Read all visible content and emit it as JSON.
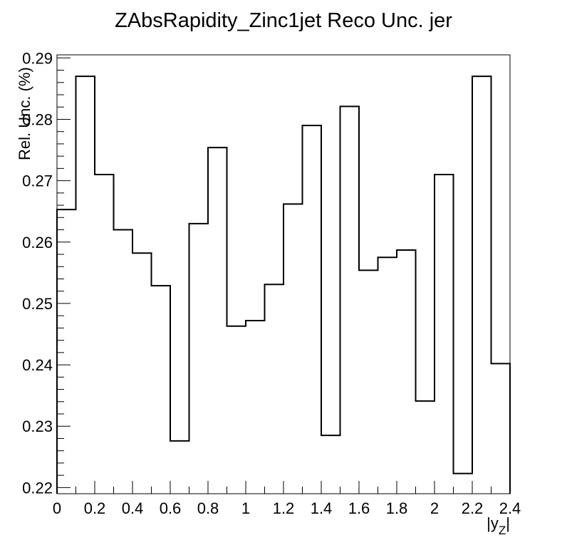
{
  "chart_data": {
    "type": "histogram-step",
    "title": "ZAbsRapidity_Zinc1jet Reco Unc. jer",
    "xlabel": "|y",
    "xlabel_sub": "Z",
    "xlabel_close": "|",
    "ylabel": "Rel. Unc. (%)",
    "xlim": [
      0,
      2.4
    ],
    "ylim": [
      0.219,
      0.2905
    ],
    "x_ticks": [
      0,
      0.2,
      0.4,
      0.6,
      0.8,
      1,
      1.2,
      1.4,
      1.6,
      1.8,
      2,
      2.2,
      2.4
    ],
    "x_tick_labels": [
      "0",
      "0.2",
      "0.4",
      "0.6",
      "0.8",
      "1",
      "1.2",
      "1.4",
      "1.6",
      "1.8",
      "2",
      "2.2",
      "2.4"
    ],
    "y_ticks": [
      0.22,
      0.23,
      0.24,
      0.25,
      0.26,
      0.27,
      0.28,
      0.29
    ],
    "y_tick_labels": [
      "0.22",
      "0.23",
      "0.24",
      "0.25",
      "0.26",
      "0.27",
      "0.28",
      "0.29"
    ],
    "bin_edges": [
      0,
      0.1,
      0.2,
      0.3,
      0.4,
      0.5,
      0.6,
      0.7,
      0.8,
      0.9,
      1.0,
      1.1,
      1.2,
      1.3,
      1.4,
      1.5,
      1.6,
      1.7,
      1.8,
      1.9,
      2.0,
      2.1,
      2.2,
      2.3,
      2.4
    ],
    "values": [
      0.2653,
      0.287,
      0.271,
      0.262,
      0.2582,
      0.2529,
      0.2276,
      0.263,
      0.2754,
      0.2463,
      0.2472,
      0.2531,
      0.2662,
      0.279,
      0.2285,
      0.2821,
      0.2554,
      0.2575,
      0.2587,
      0.2341,
      0.271,
      0.2223,
      0.287,
      0.2402
    ],
    "line_color": "#000000",
    "grid": false,
    "legend": "none"
  }
}
